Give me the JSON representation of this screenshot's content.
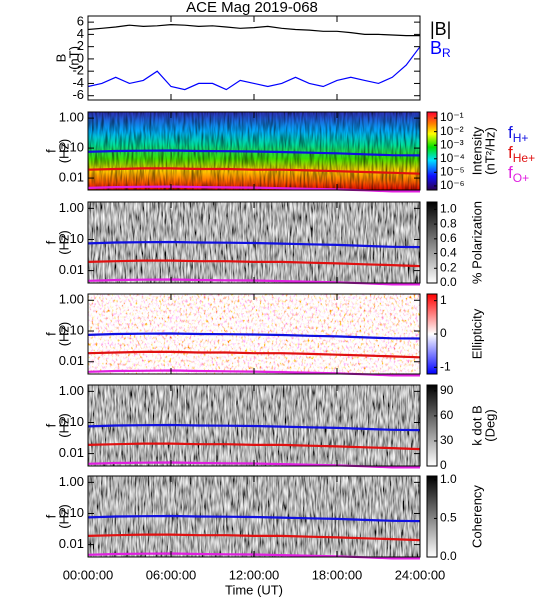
{
  "chart_data": [
    {
      "type": "line",
      "title": "ACE Mag 2019-068",
      "ylabel": [
        "B",
        "(nT)"
      ],
      "x": [
        0,
        1,
        2,
        3,
        4,
        5,
        6,
        7,
        8,
        9,
        10,
        11,
        12,
        13,
        14,
        15,
        16,
        17,
        18,
        19,
        20,
        21,
        22,
        23,
        24
      ],
      "ylim": [
        -6.7,
        7
      ],
      "yticks": [
        -6,
        -4,
        -2,
        0,
        2,
        4,
        6
      ],
      "legend": true,
      "series": [
        {
          "name": "|B|",
          "color": "#000000",
          "values": [
            4.8,
            5.0,
            5.2,
            5.5,
            5.3,
            5.4,
            5.6,
            5.5,
            5.3,
            5.4,
            5.2,
            5.0,
            5.1,
            5.3,
            5.0,
            4.8,
            4.7,
            4.5,
            4.5,
            4.3,
            4.0,
            4.0,
            3.9,
            3.8,
            3.8
          ]
        },
        {
          "name": "B",
          "sub": "R",
          "color": "#0000ff",
          "values": [
            -4.5,
            -4.0,
            -3.0,
            -4.0,
            -3.5,
            -2.0,
            -4.5,
            -5.0,
            -4.0,
            -4.0,
            -5.0,
            -3.5,
            -4.0,
            -4.5,
            -4.0,
            -3.0,
            -4.0,
            -4.5,
            -3.5,
            -3.0,
            -3.5,
            -4.0,
            -3.0,
            -1.0,
            2.0
          ]
        }
      ]
    },
    {
      "type": "spectrogram",
      "ylabel": [
        "f",
        "(Hz)"
      ],
      "log_y": true,
      "ylim": [
        0.004,
        1.6
      ],
      "yticks": [
        {
          "value": 1,
          "label": "1.00"
        },
        {
          "value": 0.1,
          "label": "0.10"
        },
        {
          "value": 0.01,
          "label": "0.01"
        }
      ],
      "colormap": "rainbow",
      "clog": true,
      "clim": [
        5e-07,
        0.28
      ],
      "cticks": [
        {
          "value": 0.1,
          "label": "10⁻¹"
        },
        {
          "value": 0.01,
          "label": "10⁻²"
        },
        {
          "value": 0.001,
          "label": "10⁻³"
        },
        {
          "value": 0.0001,
          "label": "10⁻⁴"
        },
        {
          "value": 1e-05,
          "label": "10⁻⁵"
        },
        {
          "value": 1e-06,
          "label": "10⁻⁶"
        }
      ],
      "clabel": [
        "Intensity",
        "(nT²/Hz)"
      ],
      "legend": true,
      "x": [
        0,
        2,
        4,
        6,
        8,
        10,
        12,
        14,
        16,
        18,
        20,
        22,
        24
      ],
      "series": [
        {
          "name": "f",
          "sub": "H+",
          "color": "#1010e0",
          "values": [
            0.075,
            0.08,
            0.082,
            0.083,
            0.08,
            0.079,
            0.077,
            0.074,
            0.07,
            0.067,
            0.062,
            0.058,
            0.057
          ]
        },
        {
          "name": "f",
          "sub": "He+",
          "color": "#e01010",
          "values": [
            0.019,
            0.02,
            0.021,
            0.021,
            0.02,
            0.02,
            0.019,
            0.019,
            0.018,
            0.017,
            0.016,
            0.015,
            0.014
          ]
        },
        {
          "name": "f",
          "sub": "O+",
          "color": "#e020e0",
          "values": [
            0.0047,
            0.005,
            0.0051,
            0.0052,
            0.005,
            0.0049,
            0.0048,
            0.0046,
            0.0044,
            0.0042,
            0.0039,
            0.0036,
            0.0036
          ]
        }
      ]
    },
    {
      "type": "spectrogram",
      "ylabel": [
        "f",
        "(Hz)"
      ],
      "log_y": true,
      "ylim": [
        0.004,
        1.6
      ],
      "yticks": [
        {
          "value": 1,
          "label": "1.00"
        },
        {
          "value": 0.1,
          "label": "0.10"
        },
        {
          "value": 0.01,
          "label": "0.01"
        }
      ],
      "colormap": "gray",
      "clim": [
        0,
        1.1
      ],
      "cticks": [
        {
          "value": 1,
          "label": "1.0"
        },
        0.8,
        0.6,
        0.4,
        0.2,
        {
          "value": 0,
          "label": "0.0"
        }
      ],
      "clabel": [
        "% Polarization"
      ],
      "legend": false,
      "x": [
        0,
        2,
        4,
        6,
        8,
        10,
        12,
        14,
        16,
        18,
        20,
        22,
        24
      ],
      "series": [
        {
          "color": "#1010e0",
          "values": [
            0.075,
            0.08,
            0.082,
            0.083,
            0.08,
            0.079,
            0.077,
            0.074,
            0.07,
            0.067,
            0.062,
            0.058,
            0.057
          ]
        },
        {
          "color": "#e01010",
          "values": [
            0.019,
            0.02,
            0.021,
            0.021,
            0.02,
            0.02,
            0.019,
            0.019,
            0.018,
            0.017,
            0.016,
            0.015,
            0.014
          ]
        },
        {
          "color": "#e020e0",
          "values": [
            0.0047,
            0.005,
            0.0051,
            0.0052,
            0.005,
            0.0049,
            0.0048,
            0.0046,
            0.0044,
            0.0042,
            0.0039,
            0.0036,
            0.0036
          ]
        }
      ]
    },
    {
      "type": "spectrogram",
      "ylabel": [
        "f",
        "(Hz)"
      ],
      "log_y": true,
      "ylim": [
        0.004,
        1.6
      ],
      "yticks": [
        {
          "value": 1,
          "label": "1.00"
        },
        {
          "value": 0.1,
          "label": "0.10"
        },
        {
          "value": 0.01,
          "label": "0.01"
        }
      ],
      "colormap": "bwr",
      "clim": [
        -1.2,
        1.2
      ],
      "cticks": [
        1,
        0,
        -1
      ],
      "clabel": [
        "Ellipticity"
      ],
      "legend": false,
      "x": [
        0,
        2,
        4,
        6,
        8,
        10,
        12,
        14,
        16,
        18,
        20,
        22,
        24
      ],
      "series": [
        {
          "color": "#1010e0",
          "values": [
            0.075,
            0.08,
            0.082,
            0.083,
            0.08,
            0.079,
            0.077,
            0.074,
            0.07,
            0.067,
            0.062,
            0.058,
            0.057
          ]
        },
        {
          "color": "#e01010",
          "values": [
            0.019,
            0.02,
            0.021,
            0.021,
            0.02,
            0.02,
            0.019,
            0.019,
            0.018,
            0.017,
            0.016,
            0.015,
            0.014
          ]
        },
        {
          "color": "#e020e0",
          "values": [
            0.0047,
            0.005,
            0.0051,
            0.0052,
            0.005,
            0.0049,
            0.0048,
            0.0046,
            0.0044,
            0.0042,
            0.0039,
            0.0036,
            0.0036
          ]
        }
      ]
    },
    {
      "type": "spectrogram",
      "ylabel": [
        "f",
        "(Hz)"
      ],
      "log_y": true,
      "ylim": [
        0.004,
        1.6
      ],
      "yticks": [
        {
          "value": 1,
          "label": "1.00"
        },
        {
          "value": 0.1,
          "label": "0.10"
        },
        {
          "value": 0.01,
          "label": "0.01"
        }
      ],
      "colormap": "gray",
      "clim": [
        0,
        97
      ],
      "cticks": [
        90,
        60,
        30,
        0
      ],
      "clabel": [
        "k dot B",
        "(Deg)"
      ],
      "legend": false,
      "x": [
        0,
        2,
        4,
        6,
        8,
        10,
        12,
        14,
        16,
        18,
        20,
        22,
        24
      ],
      "series": [
        {
          "color": "#1010e0",
          "values": [
            0.075,
            0.08,
            0.082,
            0.083,
            0.08,
            0.079,
            0.077,
            0.074,
            0.07,
            0.067,
            0.062,
            0.058,
            0.057
          ]
        },
        {
          "color": "#e01010",
          "values": [
            0.019,
            0.02,
            0.021,
            0.021,
            0.02,
            0.02,
            0.019,
            0.019,
            0.018,
            0.017,
            0.016,
            0.015,
            0.014
          ]
        },
        {
          "color": "#e020e0",
          "values": [
            0.0047,
            0.005,
            0.0051,
            0.0052,
            0.005,
            0.0049,
            0.0048,
            0.0046,
            0.0044,
            0.0042,
            0.0039,
            0.0036,
            0.0036
          ]
        }
      ]
    },
    {
      "type": "spectrogram",
      "ylabel": [
        "f",
        "(Hz)"
      ],
      "log_y": true,
      "ylim": [
        0.004,
        1.6
      ],
      "yticks": [
        {
          "value": 1,
          "label": "1.00"
        },
        {
          "value": 0.1,
          "label": "0.10"
        },
        {
          "value": 0.01,
          "label": "0.01"
        }
      ],
      "colormap": "gray",
      "clim": [
        0,
        1.05
      ],
      "cticks": [
        {
          "value": 1,
          "label": "1.0"
        },
        0.5,
        {
          "value": 0,
          "label": "0.0"
        }
      ],
      "clabel": [
        "Coherency"
      ],
      "legend": false,
      "x": [
        0,
        2,
        4,
        6,
        8,
        10,
        12,
        14,
        16,
        18,
        20,
        22,
        24
      ],
      "xlim": [
        0,
        24
      ],
      "xlabel": "Time (UT)",
      "xticks": [
        {
          "value": 0,
          "label": "00:00:00"
        },
        {
          "value": 6,
          "label": "06:00:00"
        },
        {
          "value": 12,
          "label": "12:00:00"
        },
        {
          "value": 18,
          "label": "18:00:00"
        },
        {
          "value": 24,
          "label": "24:00:00"
        }
      ],
      "series": [
        {
          "color": "#1010e0",
          "values": [
            0.075,
            0.08,
            0.082,
            0.083,
            0.08,
            0.079,
            0.077,
            0.074,
            0.07,
            0.067,
            0.062,
            0.058,
            0.057
          ]
        },
        {
          "color": "#e01010",
          "values": [
            0.019,
            0.02,
            0.021,
            0.021,
            0.02,
            0.02,
            0.019,
            0.019,
            0.018,
            0.017,
            0.016,
            0.015,
            0.014
          ]
        },
        {
          "color": "#e020e0",
          "values": [
            0.0047,
            0.005,
            0.0051,
            0.0052,
            0.005,
            0.0049,
            0.0048,
            0.0046,
            0.0044,
            0.0042,
            0.0039,
            0.0036,
            0.0036
          ]
        }
      ]
    }
  ]
}
